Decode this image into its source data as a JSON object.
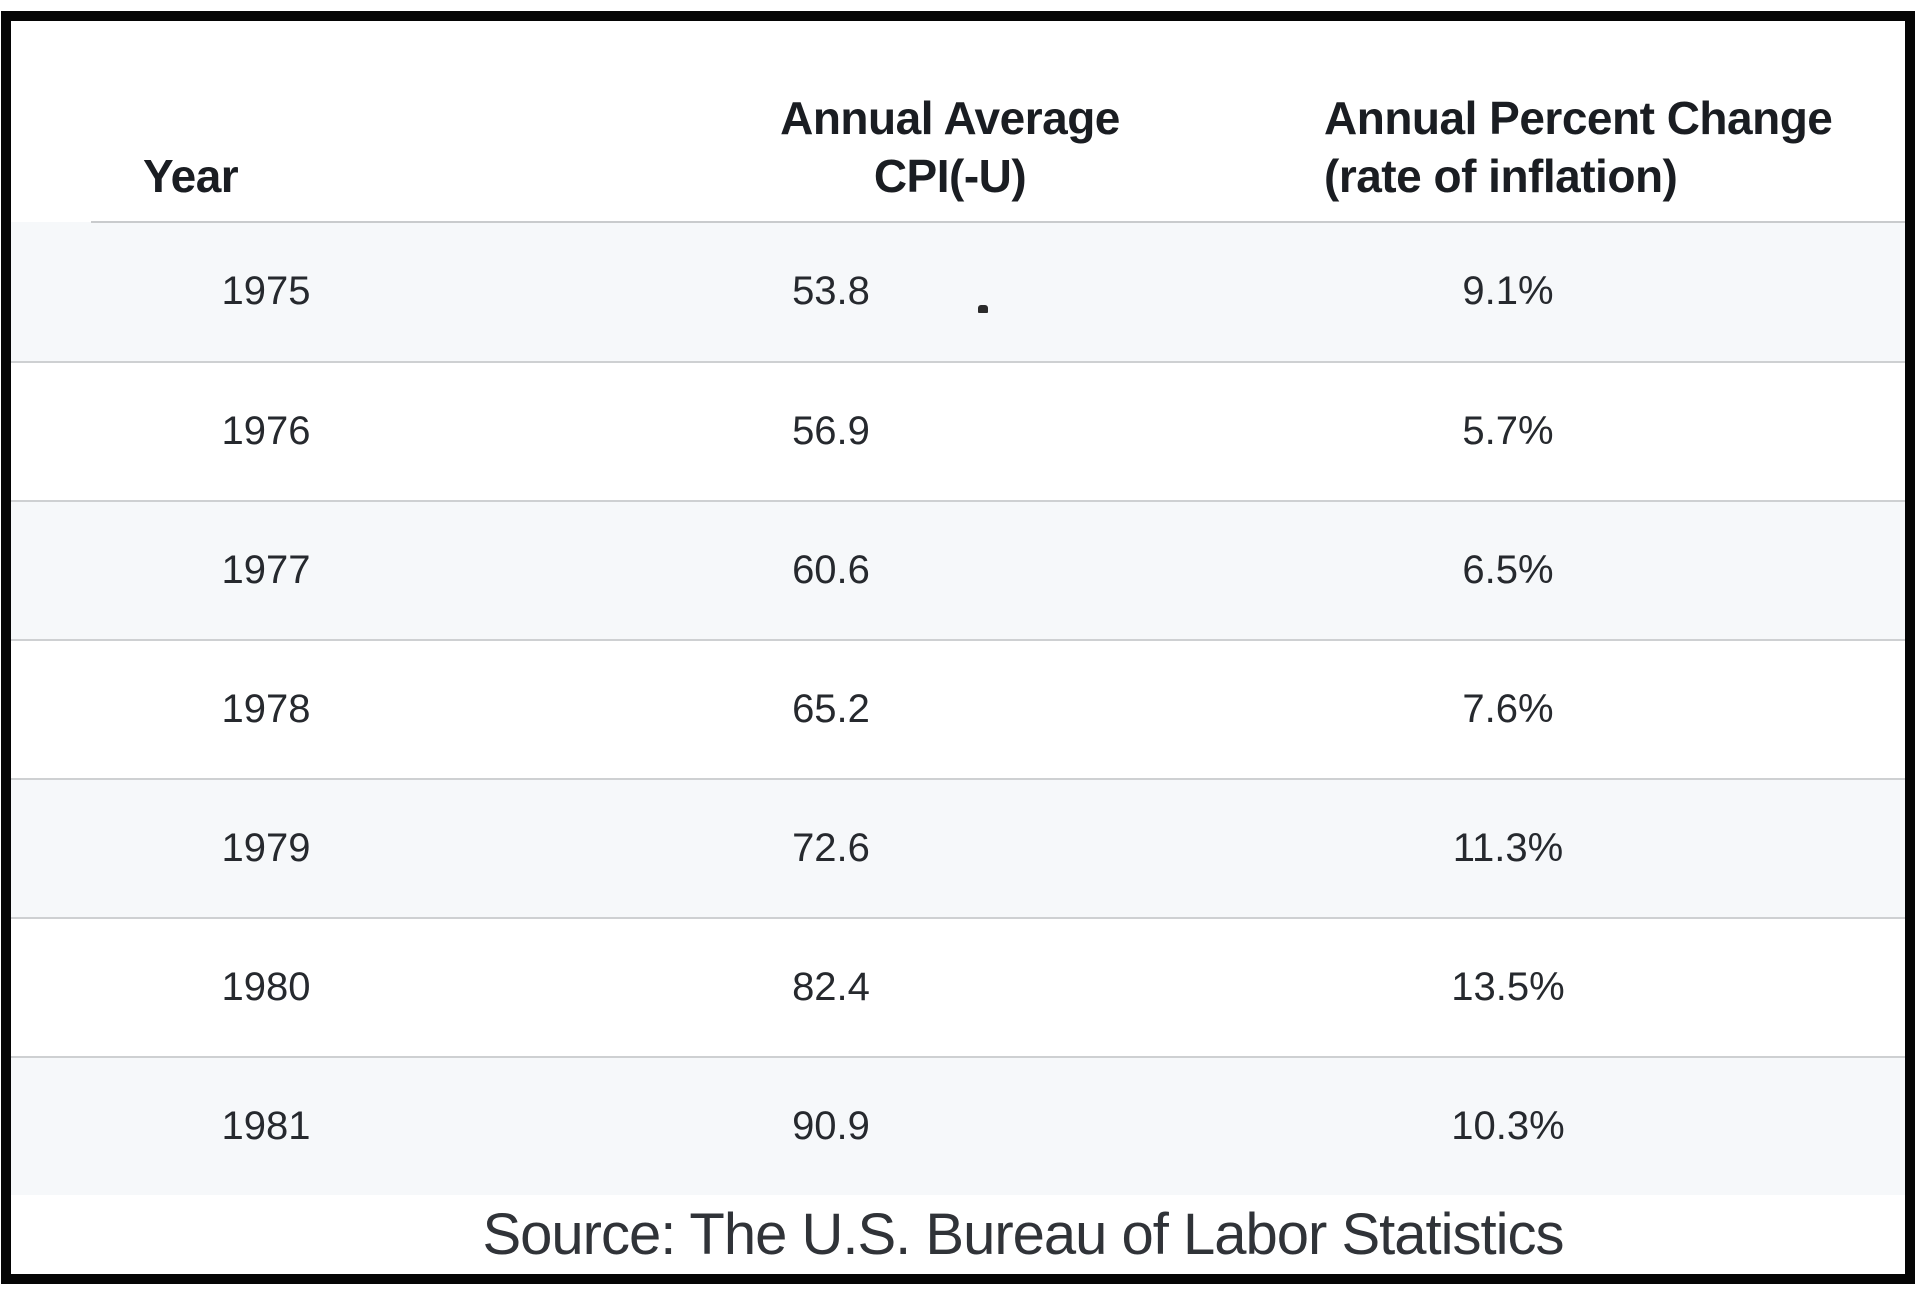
{
  "table": {
    "columns": [
      {
        "label": "Year"
      },
      {
        "label": "Annual Average CPI(-U)"
      },
      {
        "label_line1": "Annual Percent Change",
        "label_line2": "(rate of inflation)"
      }
    ],
    "rows": [
      {
        "year": "1975",
        "cpi": "53.8",
        "change": "9.1%"
      },
      {
        "year": "1976",
        "cpi": "56.9",
        "change": "5.7%"
      },
      {
        "year": "1977",
        "cpi": "60.6",
        "change": "6.5%"
      },
      {
        "year": "1978",
        "cpi": "65.2",
        "change": "7.6%"
      },
      {
        "year": "1979",
        "cpi": "72.6",
        "change": "11.3%"
      },
      {
        "year": "1980",
        "cpi": "82.4",
        "change": "13.5%"
      },
      {
        "year": "1981",
        "cpi": "90.9",
        "change": "10.3%"
      }
    ],
    "source_caption": "Source: The U.S. Bureau of Labor Statistics"
  },
  "colors": {
    "frame_border": "#050505",
    "alt_row_background": "#f6f8fa",
    "row_separator": "#ced0d2",
    "header_text": "#1a1d22",
    "body_text": "#26292e",
    "source_text": "#303338"
  },
  "chart_data": {
    "type": "table",
    "title": "",
    "columns": [
      "Year",
      "Annual Average CPI(-U)",
      "Annual Percent Change (rate of inflation)"
    ],
    "rows": [
      [
        "1975",
        53.8,
        "9.1%"
      ],
      [
        "1976",
        56.9,
        "5.7%"
      ],
      [
        "1977",
        60.6,
        "6.5%"
      ],
      [
        "1978",
        65.2,
        "7.6%"
      ],
      [
        "1979",
        72.6,
        "11.3%"
      ],
      [
        "1980",
        82.4,
        "13.5%"
      ],
      [
        "1981",
        90.9,
        "10.3%"
      ]
    ],
    "source": "Source: The U.S. Bureau of Labor Statistics",
    "layout_hints": {
      "alternating_row_shading": true,
      "outer_border": "thick black",
      "grid": "horizontal separators only"
    }
  }
}
